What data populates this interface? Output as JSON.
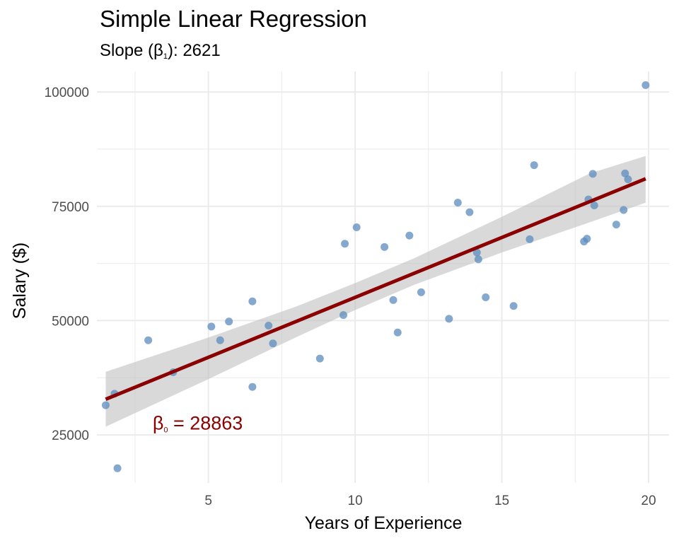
{
  "chart_data": {
    "type": "scatter",
    "title": "Simple Linear Regression",
    "subtitle": {
      "prefix": "Slope (β",
      "sub": "1",
      "suffix": "): 2621"
    },
    "xlabel": "Years of Experience",
    "ylabel": "Salary ($)",
    "xlim": [
      1.2,
      20.7
    ],
    "ylim": [
      14500,
      104500
    ],
    "xticks": [
      5,
      10,
      15,
      20
    ],
    "yticks": [
      25000,
      50000,
      75000,
      100000
    ],
    "grid": true,
    "colors": {
      "points": "#5b8bbd",
      "line": "#8b0000",
      "band": "#bfbfbf",
      "grid": "#ebebeb"
    },
    "points": [
      {
        "x": 1.5,
        "y": 31500
      },
      {
        "x": 1.8,
        "y": 34000
      },
      {
        "x": 1.9,
        "y": 17700
      },
      {
        "x": 2.95,
        "y": 45700
      },
      {
        "x": 3.8,
        "y": 38700
      },
      {
        "x": 5.1,
        "y": 48700
      },
      {
        "x": 5.4,
        "y": 45700
      },
      {
        "x": 5.7,
        "y": 49800
      },
      {
        "x": 6.5,
        "y": 54200
      },
      {
        "x": 6.5,
        "y": 35500
      },
      {
        "x": 7.05,
        "y": 48900
      },
      {
        "x": 7.2,
        "y": 45000
      },
      {
        "x": 8.8,
        "y": 41700
      },
      {
        "x": 9.6,
        "y": 51200
      },
      {
        "x": 9.65,
        "y": 66800
      },
      {
        "x": 10.05,
        "y": 70400
      },
      {
        "x": 11.0,
        "y": 66100
      },
      {
        "x": 11.3,
        "y": 54500
      },
      {
        "x": 11.45,
        "y": 47400
      },
      {
        "x": 11.85,
        "y": 68600
      },
      {
        "x": 12.25,
        "y": 56200
      },
      {
        "x": 13.2,
        "y": 50400
      },
      {
        "x": 13.5,
        "y": 75800
      },
      {
        "x": 13.9,
        "y": 73700
      },
      {
        "x": 14.15,
        "y": 64900
      },
      {
        "x": 14.2,
        "y": 63400
      },
      {
        "x": 14.45,
        "y": 55100
      },
      {
        "x": 15.4,
        "y": 53200
      },
      {
        "x": 15.95,
        "y": 67800
      },
      {
        "x": 16.1,
        "y": 84000
      },
      {
        "x": 17.8,
        "y": 67300
      },
      {
        "x": 17.9,
        "y": 67900
      },
      {
        "x": 17.95,
        "y": 76500
      },
      {
        "x": 18.1,
        "y": 82100
      },
      {
        "x": 18.15,
        "y": 75200
      },
      {
        "x": 18.9,
        "y": 71000
      },
      {
        "x": 19.15,
        "y": 74200
      },
      {
        "x": 19.2,
        "y": 82200
      },
      {
        "x": 19.3,
        "y": 80900
      },
      {
        "x": 19.9,
        "y": 101500
      }
    ],
    "regression": {
      "intercept": 28863,
      "slope": 2621,
      "x_range": [
        1.5,
        19.9
      ]
    },
    "confidence_band": [
      {
        "x": 1.5,
        "lower": 26800,
        "upper": 38800
      },
      {
        "x": 5,
        "lower": 37200,
        "upper": 46300
      },
      {
        "x": 8,
        "lower": 46400,
        "upper": 53100
      },
      {
        "x": 10,
        "lower": 52300,
        "upper": 58200
      },
      {
        "x": 12,
        "lower": 57800,
        "upper": 63600
      },
      {
        "x": 15,
        "lower": 64900,
        "upper": 72700
      },
      {
        "x": 18,
        "lower": 71500,
        "upper": 82200
      },
      {
        "x": 19.9,
        "lower": 75800,
        "upper": 86000
      }
    ],
    "annotation": {
      "prefix": "β",
      "sub": "0",
      "suffix": " = 28863",
      "x": 3.1,
      "y": 28000
    }
  }
}
